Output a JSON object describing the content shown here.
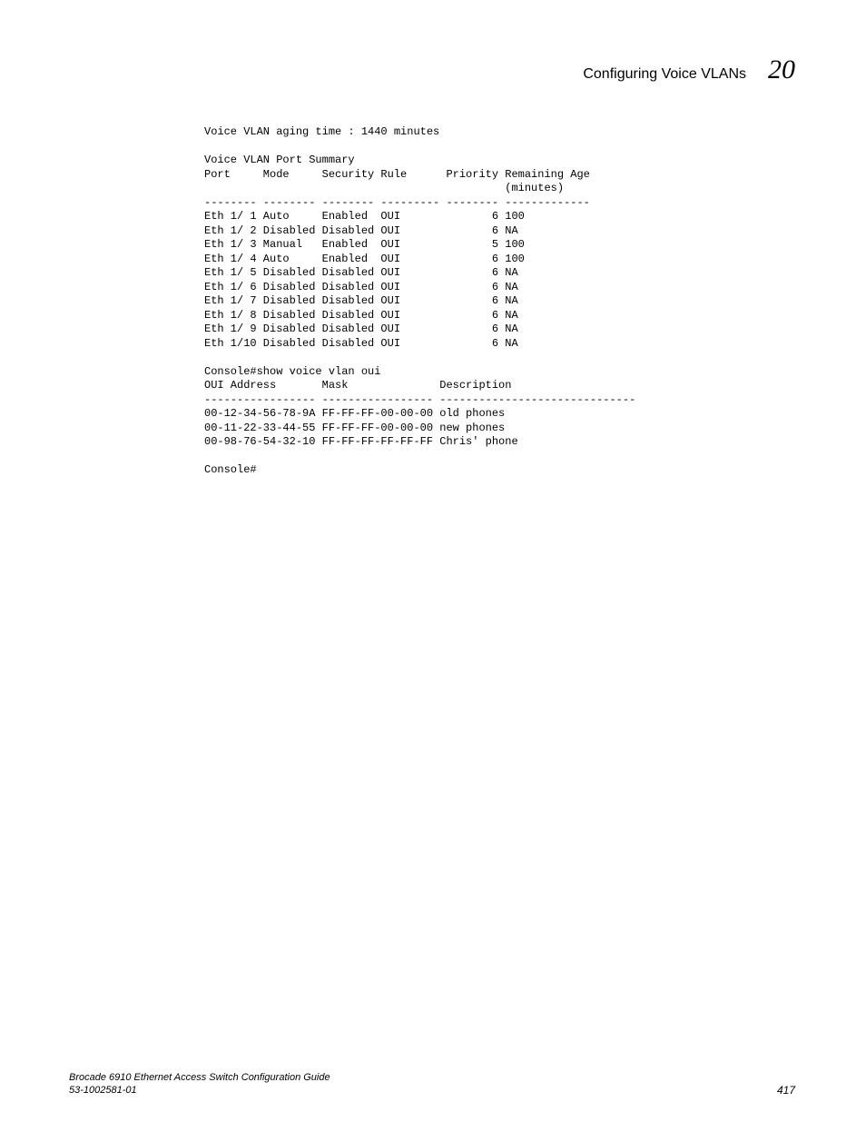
{
  "header": {
    "title": "Configuring Voice VLANs",
    "chapter": "20"
  },
  "terminal": {
    "line1": "Voice VLAN aging time : 1440 minutes",
    "blank1": "",
    "line2": "Voice VLAN Port Summary",
    "line3": "Port     Mode     Security Rule      Priority Remaining Age",
    "line4": "                                              (minutes)",
    "line5": "-------- -------- -------- --------- -------- -------------",
    "line6": "Eth 1/ 1 Auto     Enabled  OUI              6 100",
    "line7": "Eth 1/ 2 Disabled Disabled OUI              6 NA",
    "line8": "Eth 1/ 3 Manual   Enabled  OUI              5 100",
    "line9": "Eth 1/ 4 Auto     Enabled  OUI              6 100",
    "line10": "Eth 1/ 5 Disabled Disabled OUI              6 NA",
    "line11": "Eth 1/ 6 Disabled Disabled OUI              6 NA",
    "line12": "Eth 1/ 7 Disabled Disabled OUI              6 NA",
    "line13": "Eth 1/ 8 Disabled Disabled OUI              6 NA",
    "line14": "Eth 1/ 9 Disabled Disabled OUI              6 NA",
    "line15": "Eth 1/10 Disabled Disabled OUI              6 NA",
    "blank2": "",
    "line16": "Console#show voice vlan oui",
    "line17": "OUI Address       Mask              Description",
    "line18": "----------------- ----------------- ------------------------------",
    "line19": "00-12-34-56-78-9A FF-FF-FF-00-00-00 old phones",
    "line20": "00-11-22-33-44-55 FF-FF-FF-00-00-00 new phones",
    "line21": "00-98-76-54-32-10 FF-FF-FF-FF-FF-FF Chris' phone",
    "blank3": "",
    "line22": "Console#"
  },
  "footer": {
    "guide": "Brocade 6910 Ethernet Access Switch Configuration Guide",
    "docnum": "53-1002581-01",
    "page": "417"
  }
}
